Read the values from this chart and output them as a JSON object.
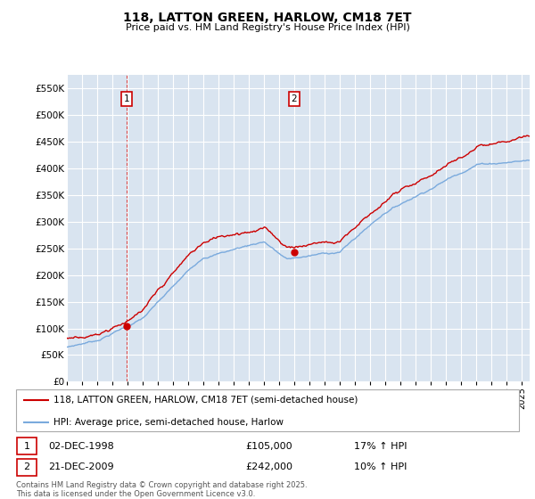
{
  "title": "118, LATTON GREEN, HARLOW, CM18 7ET",
  "subtitle": "Price paid vs. HM Land Registry's House Price Index (HPI)",
  "legend_line1": "118, LATTON GREEN, HARLOW, CM18 7ET (semi-detached house)",
  "legend_line2": "HPI: Average price, semi-detached house, Harlow",
  "red_color": "#cc0000",
  "blue_color": "#7aaadd",
  "annotation1_date": "02-DEC-1998",
  "annotation1_price": "£105,000",
  "annotation1_hpi": "17% ↑ HPI",
  "annotation2_date": "21-DEC-2009",
  "annotation2_price": "£242,000",
  "annotation2_hpi": "10% ↑ HPI",
  "footnote1": "Contains HM Land Registry data © Crown copyright and database right 2025.",
  "footnote2": "This data is licensed under the Open Government Licence v3.0.",
  "ylim": [
    0,
    575000
  ],
  "yticks": [
    0,
    50000,
    100000,
    150000,
    200000,
    250000,
    300000,
    350000,
    400000,
    450000,
    500000,
    550000
  ],
  "background_color": "#d9e4f0",
  "p1_year": 1998.92,
  "p1_price": 105000,
  "p2_year": 2009.97,
  "p2_price": 242000,
  "xstart": 1995,
  "xend": 2025.5
}
